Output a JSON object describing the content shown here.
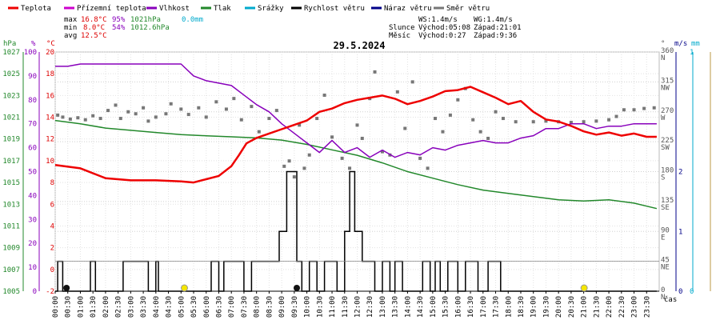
{
  "chart_data": {
    "type": "line",
    "title": "29.5.2024",
    "legend": [
      {
        "name": "Teplota",
        "color": "#ee0000"
      },
      {
        "name": "Přízemní teplota",
        "color": "#cc00cc"
      },
      {
        "name": "Vlhkost",
        "color": "#8800bb"
      },
      {
        "name": "Tlak",
        "color": "#22882b"
      },
      {
        "name": "Srážky",
        "color": "#00aacc"
      },
      {
        "name": "Rychlost větru",
        "color": "#000000"
      },
      {
        "name": "Náraz větru",
        "color": "#000088"
      },
      {
        "name": "Směr větru",
        "color": "#777777"
      }
    ],
    "stats": {
      "max_label": "max",
      "max_temp": "16.8°C",
      "max_hum": "95%",
      "max_press": "1021hPa",
      "max_rain": "0.0mm",
      "min_label": "min",
      "min_temp": "8.0°C",
      "min_hum": "54%",
      "min_press": "1012.6hPa",
      "avg_label": "avg",
      "avg_temp": "12.5°C"
    },
    "info": {
      "ws": "WS:1.4m/s",
      "wg": "WG:1.4m/s",
      "sun_label": "Slunce",
      "sun_rise": "Východ:05:08",
      "sun_set": "Západ:21:01",
      "moon_label": "Měsíc",
      "moon_rise": "Východ:0:27",
      "moon_set": "Západ:9:36"
    },
    "axis_units": {
      "hpa": "hPa",
      "pct": "%",
      "degc": "°C",
      "deg": "°",
      "ms": "m/s",
      "mm": "mm",
      "time": "čas"
    },
    "axes": {
      "pressure": {
        "ticks": [
          "1027",
          "1025",
          "1023",
          "1021",
          "1019",
          "1017",
          "1015",
          "1013",
          "1011",
          "1009",
          "1007",
          "1005"
        ]
      },
      "humidity": {
        "ticks": [
          "100",
          "90",
          "80",
          "70",
          "60",
          "50",
          "40",
          "30",
          "20",
          "10",
          "0"
        ]
      },
      "temperature": {
        "ticks": [
          "20",
          "18",
          "16",
          "14",
          "12",
          "10",
          "8",
          "6",
          "4",
          "2",
          "0",
          "-2"
        ]
      },
      "direction": {
        "ticks": [
          "360",
          "315",
          "270",
          "225",
          "180",
          "135",
          "90",
          "45",
          "0"
        ],
        "labels": [
          "N",
          "NW",
          "W",
          "SW",
          "S",
          "SE",
          "E",
          "NE",
          "N"
        ]
      },
      "wind_speed": {
        "ticks": [
          "2",
          "1",
          "0"
        ]
      },
      "rain": {
        "ticks": [
          "1",
          "0"
        ]
      },
      "time": {
        "ticks": [
          "00:00",
          "00:30",
          "01:00",
          "01:30",
          "02:00",
          "02:30",
          "03:00",
          "03:30",
          "04:00",
          "04:30",
          "05:00",
          "05:30",
          "06:00",
          "06:30",
          "07:00",
          "07:30",
          "08:00",
          "08:30",
          "09:00",
          "09:30",
          "10:00",
          "10:30",
          "11:00",
          "11:30",
          "12:00",
          "12:30",
          "13:00",
          "13:30",
          "14:00",
          "14:30",
          "15:00",
          "15:30",
          "16:00",
          "16:30",
          "17:00",
          "17:30",
          "18:00",
          "18:30",
          "19:00",
          "19:30",
          "20:00",
          "20:30",
          "21:00",
          "21:30",
          "22:00",
          "22:30",
          "23:00",
          "23:30"
        ]
      }
    },
    "series": [
      {
        "name": "Teplota",
        "unit": "°C",
        "x": [
          0,
          1,
          2,
          3,
          4,
          5,
          5.5,
          6,
          6.5,
          7,
          7.3,
          7.6,
          8,
          8.5,
          9,
          9.5,
          10,
          10.5,
          11,
          11.5,
          12,
          12.5,
          13,
          13.5,
          14,
          14.5,
          15,
          15.5,
          16,
          16.5,
          17,
          17.5,
          18,
          18.5,
          19,
          19.5,
          20,
          20.5,
          21,
          21.5,
          22,
          22.5,
          23,
          23.5,
          23.9
        ],
        "y": [
          9.6,
          9.3,
          8.4,
          8.2,
          8.2,
          8.1,
          8.0,
          8.3,
          8.6,
          9.5,
          10.5,
          11.6,
          12.1,
          12.5,
          12.9,
          13.3,
          13.7,
          14.5,
          14.8,
          15.3,
          15.6,
          15.8,
          16.0,
          15.7,
          15.2,
          15.5,
          15.9,
          16.4,
          16.5,
          16.8,
          16.3,
          15.8,
          15.2,
          15.5,
          14.5,
          13.8,
          13.6,
          13.2,
          12.7,
          12.4,
          12.6,
          12.3,
          12.5,
          12.2,
          12.2
        ]
      },
      {
        "name": "Vlhkost",
        "unit": "%",
        "x": [
          0,
          0.5,
          1,
          2,
          3,
          4,
          5,
          5.5,
          6,
          6.5,
          7,
          7.5,
          8,
          8.5,
          9,
          9.5,
          10,
          10.5,
          11,
          11.5,
          12,
          12.5,
          13,
          13.5,
          14,
          14.5,
          15,
          15.5,
          16,
          16.5,
          17,
          17.5,
          18,
          18.5,
          19,
          19.5,
          20,
          20.5,
          21,
          21.5,
          22,
          22.5,
          23,
          23.5,
          23.9
        ],
        "y": [
          94,
          94,
          95,
          95,
          95,
          95,
          95,
          90,
          88,
          87,
          86,
          82,
          78,
          75,
          70,
          66,
          62,
          58,
          63,
          58,
          60,
          56,
          59,
          56,
          58,
          57,
          60,
          59,
          61,
          62,
          63,
          62,
          62,
          64,
          65,
          68,
          68,
          70,
          70,
          68,
          69,
          69,
          70,
          70,
          70
        ]
      },
      {
        "name": "Tlak",
        "unit": "hPa",
        "x": [
          0,
          1,
          2,
          3,
          4,
          5,
          6,
          7,
          8,
          9,
          10,
          11,
          12,
          13,
          14,
          15,
          16,
          17,
          18,
          19,
          20,
          21,
          22,
          23,
          23.9
        ],
        "y": [
          1020.7,
          1020.4,
          1020.0,
          1019.8,
          1019.6,
          1019.4,
          1019.3,
          1019.2,
          1019.1,
          1018.9,
          1018.5,
          1018.0,
          1017.5,
          1016.8,
          1016.0,
          1015.4,
          1014.8,
          1014.3,
          1014.0,
          1013.7,
          1013.4,
          1013.3,
          1013.4,
          1013.1,
          1012.6
        ]
      },
      {
        "name": "Rychlost větru",
        "unit": "m/s",
        "x": [
          0,
          0.1,
          0.15,
          0.2,
          0.3,
          1.2,
          1.4,
          1.6,
          2.6,
          2.7,
          3.0,
          3.3,
          3.7,
          4.0,
          4.1,
          6.0,
          6.2,
          6.5,
          6.7,
          7.2,
          7.5,
          7.8,
          8.0,
          8.5,
          8.9,
          9.2,
          9.3,
          9.6,
          9.8,
          10.1,
          10.4,
          10.7,
          11.2,
          11.5,
          11.7,
          11.9,
          12.2,
          12.5,
          12.7,
          13.0,
          13.3,
          13.5,
          13.8,
          14.0,
          14.5,
          14.6,
          14.9,
          15.1,
          15.3,
          15.6,
          16.0,
          16.3,
          16.8,
          17.2,
          17.7,
          18.0,
          21.0,
          22.0,
          23.9
        ],
        "y": [
          0,
          0.5,
          0.5,
          0.5,
          0,
          0,
          0.5,
          0,
          0,
          0.5,
          0.5,
          0.5,
          0,
          0.5,
          0,
          0,
          0.5,
          0,
          0.5,
          0.5,
          0,
          0.5,
          0.5,
          0.5,
          1.0,
          2.0,
          2.0,
          0.5,
          0,
          0.5,
          0,
          0.5,
          0,
          1.0,
          2.0,
          1.0,
          0.5,
          0.5,
          0,
          0.5,
          0,
          0.5,
          0,
          0,
          0,
          0.5,
          0,
          0.5,
          0,
          0.5,
          0,
          0.5,
          0,
          0.5,
          0,
          0,
          0,
          0,
          0
        ]
      }
    ],
    "wind_direction_points": [
      {
        "x": 0.1,
        "y": 265
      },
      {
        "x": 0.3,
        "y": 262
      },
      {
        "x": 0.6,
        "y": 259
      },
      {
        "x": 0.9,
        "y": 261
      },
      {
        "x": 1.2,
        "y": 258
      },
      {
        "x": 1.5,
        "y": 264
      },
      {
        "x": 1.8,
        "y": 260
      },
      {
        "x": 2.1,
        "y": 272
      },
      {
        "x": 2.4,
        "y": 280
      },
      {
        "x": 2.6,
        "y": 260
      },
      {
        "x": 2.9,
        "y": 270
      },
      {
        "x": 3.2,
        "y": 267
      },
      {
        "x": 3.5,
        "y": 276
      },
      {
        "x": 3.7,
        "y": 256
      },
      {
        "x": 4.0,
        "y": 262
      },
      {
        "x": 4.4,
        "y": 267
      },
      {
        "x": 4.6,
        "y": 282
      },
      {
        "x": 5.0,
        "y": 274
      },
      {
        "x": 5.3,
        "y": 266
      },
      {
        "x": 5.7,
        "y": 276
      },
      {
        "x": 6.0,
        "y": 262
      },
      {
        "x": 6.4,
        "y": 285
      },
      {
        "x": 6.8,
        "y": 274
      },
      {
        "x": 7.1,
        "y": 290
      },
      {
        "x": 7.4,
        "y": 258
      },
      {
        "x": 7.8,
        "y": 278
      },
      {
        "x": 8.1,
        "y": 240
      },
      {
        "x": 8.5,
        "y": 260
      },
      {
        "x": 8.8,
        "y": 272
      },
      {
        "x": 9.1,
        "y": 188
      },
      {
        "x": 9.3,
        "y": 196
      },
      {
        "x": 9.5,
        "y": 172
      },
      {
        "x": 9.7,
        "y": 250
      },
      {
        "x": 9.9,
        "y": 185
      },
      {
        "x": 10.1,
        "y": 205
      },
      {
        "x": 10.4,
        "y": 260
      },
      {
        "x": 10.7,
        "y": 295
      },
      {
        "x": 11.0,
        "y": 232
      },
      {
        "x": 11.4,
        "y": 200
      },
      {
        "x": 11.7,
        "y": 185
      },
      {
        "x": 12.0,
        "y": 250
      },
      {
        "x": 12.2,
        "y": 230
      },
      {
        "x": 12.5,
        "y": 290
      },
      {
        "x": 12.7,
        "y": 330
      },
      {
        "x": 13.0,
        "y": 210
      },
      {
        "x": 13.3,
        "y": 205
      },
      {
        "x": 13.6,
        "y": 300
      },
      {
        "x": 13.9,
        "y": 245
      },
      {
        "x": 14.2,
        "y": 315
      },
      {
        "x": 14.5,
        "y": 200
      },
      {
        "x": 14.8,
        "y": 185
      },
      {
        "x": 15.1,
        "y": 260
      },
      {
        "x": 15.4,
        "y": 240
      },
      {
        "x": 15.7,
        "y": 265
      },
      {
        "x": 16.0,
        "y": 288
      },
      {
        "x": 16.3,
        "y": 305
      },
      {
        "x": 16.6,
        "y": 258
      },
      {
        "x": 16.9,
        "y": 240
      },
      {
        "x": 17.2,
        "y": 230
      },
      {
        "x": 17.5,
        "y": 270
      },
      {
        "x": 17.8,
        "y": 260
      },
      {
        "x": 18.3,
        "y": 255
      },
      {
        "x": 19.0,
        "y": 255
      },
      {
        "x": 19.5,
        "y": 256
      },
      {
        "x": 20.0,
        "y": 255
      },
      {
        "x": 20.5,
        "y": 254
      },
      {
        "x": 21.0,
        "y": 255
      },
      {
        "x": 21.5,
        "y": 256
      },
      {
        "x": 22.0,
        "y": 258
      },
      {
        "x": 22.3,
        "y": 263
      },
      {
        "x": 22.6,
        "y": 273
      },
      {
        "x": 23.0,
        "y": 273
      },
      {
        "x": 23.4,
        "y": 275
      },
      {
        "x": 23.8,
        "y": 276
      }
    ]
  }
}
